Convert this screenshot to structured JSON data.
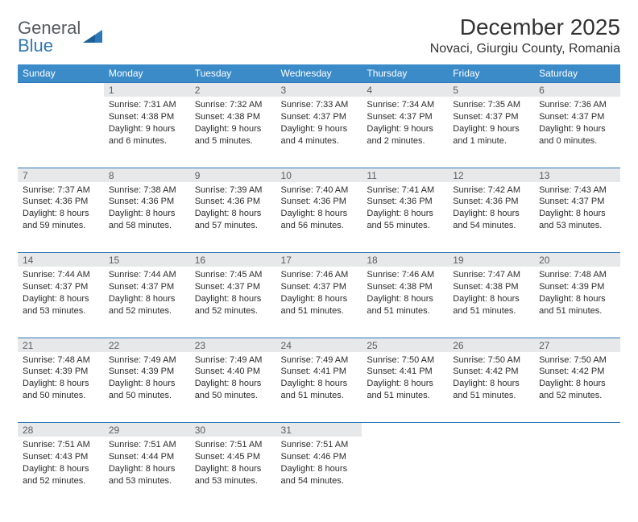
{
  "brand": {
    "part1": "General",
    "part2": "Blue"
  },
  "title": "December 2025",
  "location": "Novaci, Giurgiu County, Romania",
  "colors": {
    "header_bg": "#3b8bc9",
    "header_text": "#ffffff",
    "daynum_bg": "#e7e8e9",
    "rule": "#2f78b7",
    "body_text": "#2b2b2b",
    "logo_gray": "#555b61",
    "logo_blue": "#2f78b7"
  },
  "weekdays": [
    "Sunday",
    "Monday",
    "Tuesday",
    "Wednesday",
    "Thursday",
    "Friday",
    "Saturday"
  ],
  "weeks": [
    [
      null,
      {
        "n": "1",
        "sr": "Sunrise: 7:31 AM",
        "ss": "Sunset: 4:38 PM",
        "dl": "Daylight: 9 hours and 6 minutes."
      },
      {
        "n": "2",
        "sr": "Sunrise: 7:32 AM",
        "ss": "Sunset: 4:38 PM",
        "dl": "Daylight: 9 hours and 5 minutes."
      },
      {
        "n": "3",
        "sr": "Sunrise: 7:33 AM",
        "ss": "Sunset: 4:37 PM",
        "dl": "Daylight: 9 hours and 4 minutes."
      },
      {
        "n": "4",
        "sr": "Sunrise: 7:34 AM",
        "ss": "Sunset: 4:37 PM",
        "dl": "Daylight: 9 hours and 2 minutes."
      },
      {
        "n": "5",
        "sr": "Sunrise: 7:35 AM",
        "ss": "Sunset: 4:37 PM",
        "dl": "Daylight: 9 hours and 1 minute."
      },
      {
        "n": "6",
        "sr": "Sunrise: 7:36 AM",
        "ss": "Sunset: 4:37 PM",
        "dl": "Daylight: 9 hours and 0 minutes."
      }
    ],
    [
      {
        "n": "7",
        "sr": "Sunrise: 7:37 AM",
        "ss": "Sunset: 4:36 PM",
        "dl": "Daylight: 8 hours and 59 minutes."
      },
      {
        "n": "8",
        "sr": "Sunrise: 7:38 AM",
        "ss": "Sunset: 4:36 PM",
        "dl": "Daylight: 8 hours and 58 minutes."
      },
      {
        "n": "9",
        "sr": "Sunrise: 7:39 AM",
        "ss": "Sunset: 4:36 PM",
        "dl": "Daylight: 8 hours and 57 minutes."
      },
      {
        "n": "10",
        "sr": "Sunrise: 7:40 AM",
        "ss": "Sunset: 4:36 PM",
        "dl": "Daylight: 8 hours and 56 minutes."
      },
      {
        "n": "11",
        "sr": "Sunrise: 7:41 AM",
        "ss": "Sunset: 4:36 PM",
        "dl": "Daylight: 8 hours and 55 minutes."
      },
      {
        "n": "12",
        "sr": "Sunrise: 7:42 AM",
        "ss": "Sunset: 4:36 PM",
        "dl": "Daylight: 8 hours and 54 minutes."
      },
      {
        "n": "13",
        "sr": "Sunrise: 7:43 AM",
        "ss": "Sunset: 4:37 PM",
        "dl": "Daylight: 8 hours and 53 minutes."
      }
    ],
    [
      {
        "n": "14",
        "sr": "Sunrise: 7:44 AM",
        "ss": "Sunset: 4:37 PM",
        "dl": "Daylight: 8 hours and 53 minutes."
      },
      {
        "n": "15",
        "sr": "Sunrise: 7:44 AM",
        "ss": "Sunset: 4:37 PM",
        "dl": "Daylight: 8 hours and 52 minutes."
      },
      {
        "n": "16",
        "sr": "Sunrise: 7:45 AM",
        "ss": "Sunset: 4:37 PM",
        "dl": "Daylight: 8 hours and 52 minutes."
      },
      {
        "n": "17",
        "sr": "Sunrise: 7:46 AM",
        "ss": "Sunset: 4:37 PM",
        "dl": "Daylight: 8 hours and 51 minutes."
      },
      {
        "n": "18",
        "sr": "Sunrise: 7:46 AM",
        "ss": "Sunset: 4:38 PM",
        "dl": "Daylight: 8 hours and 51 minutes."
      },
      {
        "n": "19",
        "sr": "Sunrise: 7:47 AM",
        "ss": "Sunset: 4:38 PM",
        "dl": "Daylight: 8 hours and 51 minutes."
      },
      {
        "n": "20",
        "sr": "Sunrise: 7:48 AM",
        "ss": "Sunset: 4:39 PM",
        "dl": "Daylight: 8 hours and 51 minutes."
      }
    ],
    [
      {
        "n": "21",
        "sr": "Sunrise: 7:48 AM",
        "ss": "Sunset: 4:39 PM",
        "dl": "Daylight: 8 hours and 50 minutes."
      },
      {
        "n": "22",
        "sr": "Sunrise: 7:49 AM",
        "ss": "Sunset: 4:39 PM",
        "dl": "Daylight: 8 hours and 50 minutes."
      },
      {
        "n": "23",
        "sr": "Sunrise: 7:49 AM",
        "ss": "Sunset: 4:40 PM",
        "dl": "Daylight: 8 hours and 50 minutes."
      },
      {
        "n": "24",
        "sr": "Sunrise: 7:49 AM",
        "ss": "Sunset: 4:41 PM",
        "dl": "Daylight: 8 hours and 51 minutes."
      },
      {
        "n": "25",
        "sr": "Sunrise: 7:50 AM",
        "ss": "Sunset: 4:41 PM",
        "dl": "Daylight: 8 hours and 51 minutes."
      },
      {
        "n": "26",
        "sr": "Sunrise: 7:50 AM",
        "ss": "Sunset: 4:42 PM",
        "dl": "Daylight: 8 hours and 51 minutes."
      },
      {
        "n": "27",
        "sr": "Sunrise: 7:50 AM",
        "ss": "Sunset: 4:42 PM",
        "dl": "Daylight: 8 hours and 52 minutes."
      }
    ],
    [
      {
        "n": "28",
        "sr": "Sunrise: 7:51 AM",
        "ss": "Sunset: 4:43 PM",
        "dl": "Daylight: 8 hours and 52 minutes."
      },
      {
        "n": "29",
        "sr": "Sunrise: 7:51 AM",
        "ss": "Sunset: 4:44 PM",
        "dl": "Daylight: 8 hours and 53 minutes."
      },
      {
        "n": "30",
        "sr": "Sunrise: 7:51 AM",
        "ss": "Sunset: 4:45 PM",
        "dl": "Daylight: 8 hours and 53 minutes."
      },
      {
        "n": "31",
        "sr": "Sunrise: 7:51 AM",
        "ss": "Sunset: 4:46 PM",
        "dl": "Daylight: 8 hours and 54 minutes."
      },
      null,
      null,
      null
    ]
  ]
}
